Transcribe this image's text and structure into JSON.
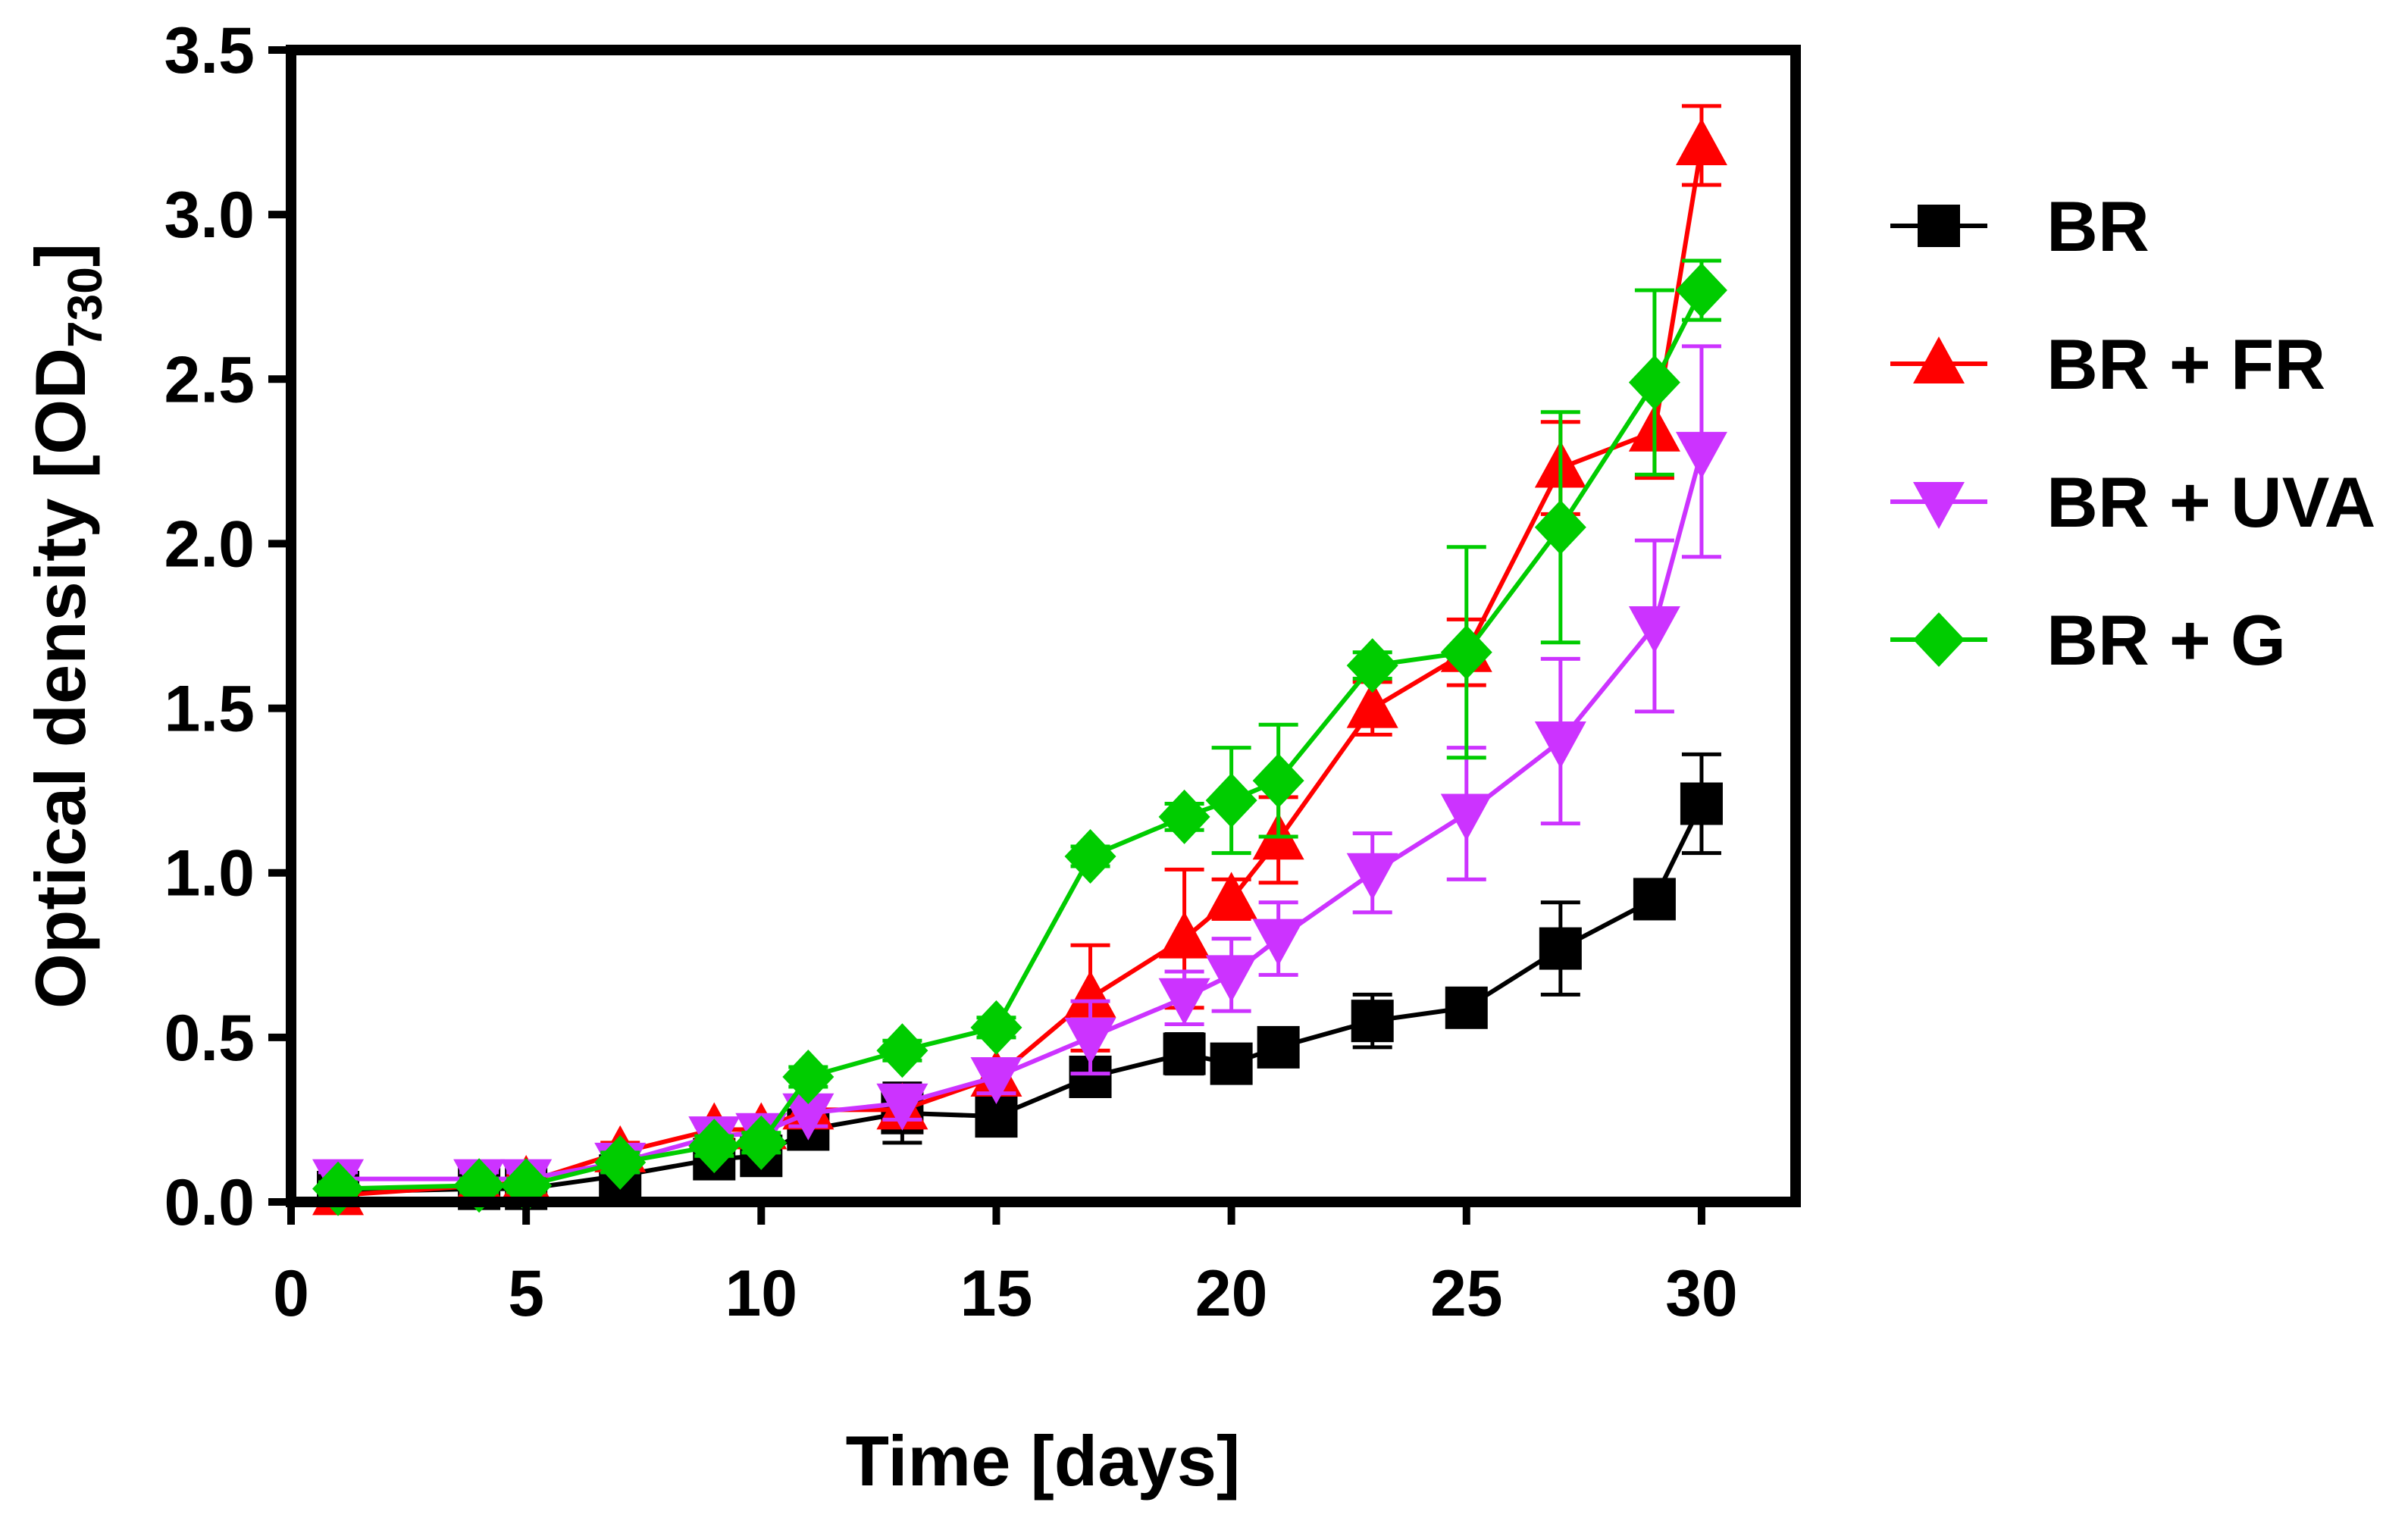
{
  "chart_data": {
    "type": "line",
    "title": "",
    "xlabel": "Time [days]",
    "ylabel": "Optical density [OD",
    "ylabel_subscript": "730",
    "ylabel_close": "]",
    "xlim": [
      0,
      32
    ],
    "ylim": [
      0,
      3.5
    ],
    "xticks": [
      "0",
      "5",
      "10",
      "15",
      "20",
      "25",
      "30"
    ],
    "yticks": [
      "0.0",
      "0.5",
      "1.0",
      "1.5",
      "2.0",
      "2.5",
      "3.0",
      "3.5"
    ],
    "x": [
      1,
      4,
      5,
      7,
      9,
      10,
      11,
      13,
      15,
      17,
      19,
      20,
      21,
      23,
      25,
      27,
      29,
      30
    ],
    "series": [
      {
        "name": "BR",
        "color": "#000000",
        "marker": "square",
        "values": [
          0.03,
          0.04,
          0.04,
          0.08,
          0.13,
          0.14,
          0.22,
          0.27,
          0.26,
          0.38,
          0.45,
          0.42,
          0.47,
          0.55,
          0.59,
          0.77,
          0.92,
          1.21
        ],
        "errors": [
          0.02,
          0.02,
          0.02,
          0.03,
          0.03,
          0.03,
          0.04,
          0.09,
          0.03,
          0.05,
          0.06,
          0.03,
          0.05,
          0.08,
          0.05,
          0.14,
          0.03,
          0.15
        ]
      },
      {
        "name": "BR + FR",
        "color": "#ff0000",
        "marker": "triangle-up",
        "values": [
          0.02,
          0.05,
          0.06,
          0.15,
          0.22,
          0.22,
          0.28,
          0.28,
          0.38,
          0.62,
          0.8,
          0.92,
          1.1,
          1.5,
          1.67,
          2.23,
          2.34,
          3.21
        ],
        "errors": [
          0.02,
          0.02,
          0.02,
          0.03,
          0.03,
          0.03,
          0.03,
          0.05,
          0.05,
          0.16,
          0.21,
          0.06,
          0.13,
          0.08,
          0.1,
          0.14,
          0.14,
          0.12
        ]
      },
      {
        "name": "BR + UVA",
        "color": "#cc33ff",
        "marker": "triangle-down",
        "values": [
          0.07,
          0.07,
          0.07,
          0.12,
          0.2,
          0.21,
          0.27,
          0.3,
          0.38,
          0.5,
          0.62,
          0.69,
          0.8,
          1.0,
          1.18,
          1.4,
          1.75,
          2.28
        ],
        "errors": [
          0.02,
          0.02,
          0.02,
          0.03,
          0.03,
          0.03,
          0.04,
          0.05,
          0.05,
          0.11,
          0.08,
          0.11,
          0.11,
          0.12,
          0.2,
          0.25,
          0.26,
          0.32
        ]
      },
      {
        "name": "BR + G",
        "color": "#00cc00",
        "marker": "diamond",
        "values": [
          0.04,
          0.05,
          0.05,
          0.12,
          0.17,
          0.18,
          0.38,
          0.46,
          0.53,
          1.05,
          1.17,
          1.22,
          1.28,
          1.63,
          1.67,
          2.05,
          2.49,
          2.77
        ],
        "errors": [
          0.02,
          0.02,
          0.02,
          0.03,
          0.03,
          0.03,
          0.03,
          0.03,
          0.03,
          0.03,
          0.04,
          0.16,
          0.17,
          0.04,
          0.32,
          0.35,
          0.28,
          0.09
        ]
      }
    ],
    "legend": "right"
  }
}
